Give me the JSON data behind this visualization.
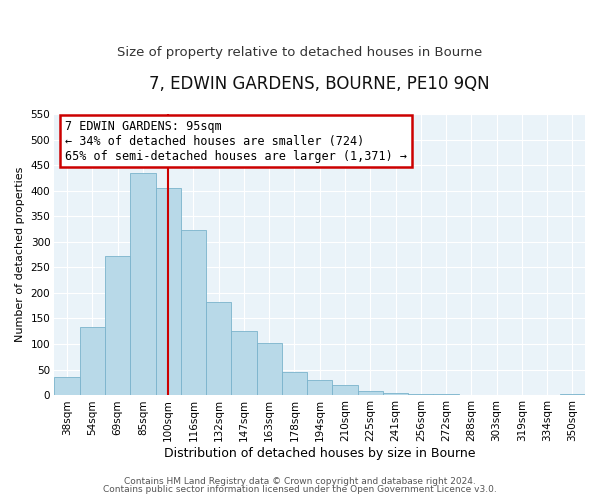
{
  "title": "7, EDWIN GARDENS, BOURNE, PE10 9QN",
  "subtitle": "Size of property relative to detached houses in Bourne",
  "xlabel": "Distribution of detached houses by size in Bourne",
  "ylabel": "Number of detached properties",
  "categories": [
    "38sqm",
    "54sqm",
    "69sqm",
    "85sqm",
    "100sqm",
    "116sqm",
    "132sqm",
    "147sqm",
    "163sqm",
    "178sqm",
    "194sqm",
    "210sqm",
    "225sqm",
    "241sqm",
    "256sqm",
    "272sqm",
    "288sqm",
    "303sqm",
    "319sqm",
    "334sqm",
    "350sqm"
  ],
  "values": [
    35,
    133,
    273,
    435,
    405,
    323,
    182,
    125,
    103,
    46,
    30,
    20,
    8,
    5,
    3,
    2,
    1,
    1,
    1,
    1,
    2
  ],
  "bar_color": "#b8d9e8",
  "bar_edge_color": "#7ab3cc",
  "highlight_line_color": "#cc0000",
  "highlight_line_index": 4,
  "ylim": [
    0,
    550
  ],
  "yticks": [
    0,
    50,
    100,
    150,
    200,
    250,
    300,
    350,
    400,
    450,
    500,
    550
  ],
  "annotation_title": "7 EDWIN GARDENS: 95sqm",
  "annotation_line1": "← 34% of detached houses are smaller (724)",
  "annotation_line2": "65% of semi-detached houses are larger (1,371) →",
  "footer1": "Contains HM Land Registry data © Crown copyright and database right 2024.",
  "footer2": "Contains public sector information licensed under the Open Government Licence v3.0.",
  "background_color": "#ffffff",
  "plot_bg_color": "#eaf3f9",
  "grid_color": "#ffffff",
  "title_fontsize": 12,
  "subtitle_fontsize": 9.5,
  "xlabel_fontsize": 9,
  "ylabel_fontsize": 8,
  "tick_fontsize": 7.5,
  "ann_fontsize": 8.5,
  "footer_fontsize": 6.5
}
